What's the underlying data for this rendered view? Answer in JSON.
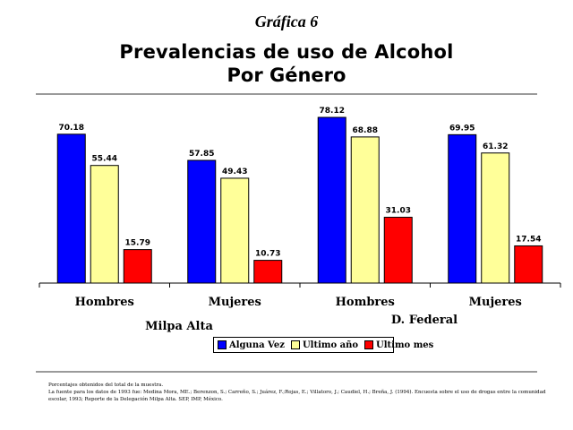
{
  "header": {
    "graph_number": "Gráfica 6",
    "title_line1": "Prevalencias de uso de Alcohol",
    "title_line2": "Por Género"
  },
  "chart_data": {
    "type": "bar",
    "categories": [
      "Hombres",
      "Mujeres",
      "Hombres",
      "Mujeres"
    ],
    "groups": [
      "Milpa Alta",
      "D. Federal"
    ],
    "series": [
      {
        "name": "Alguna Vez",
        "color": "#0000ff",
        "values": [
          70.18,
          57.85,
          78.12,
          69.95
        ]
      },
      {
        "name": "Ultimo año",
        "color": "#ffff99",
        "values": [
          55.44,
          49.43,
          68.88,
          61.32
        ]
      },
      {
        "name": "Ultimo mes",
        "color": "#ff0000",
        "values": [
          15.79,
          10.73,
          31.03,
          17.54
        ]
      }
    ],
    "ylim": [
      0,
      78.12
    ],
    "legend": "bottom-center",
    "grid": false
  },
  "footnotes": {
    "line1": "Porcentajes obtenidos del total de la muestra.",
    "line2": "La fuente para los datos de 1993 fue: Medina Mora, ME.; Berenzon, S.; Carreño, S.; Juárez, F.;Rojas, E.; Villatoro, J.; Caudiel, H.; Breña, J. (1994). Encuesta sobre el uso de drogas entre la comunidad escolar, 1993; Reporte de la Delegación Milpa Alta. SEP, IMP, México."
  }
}
